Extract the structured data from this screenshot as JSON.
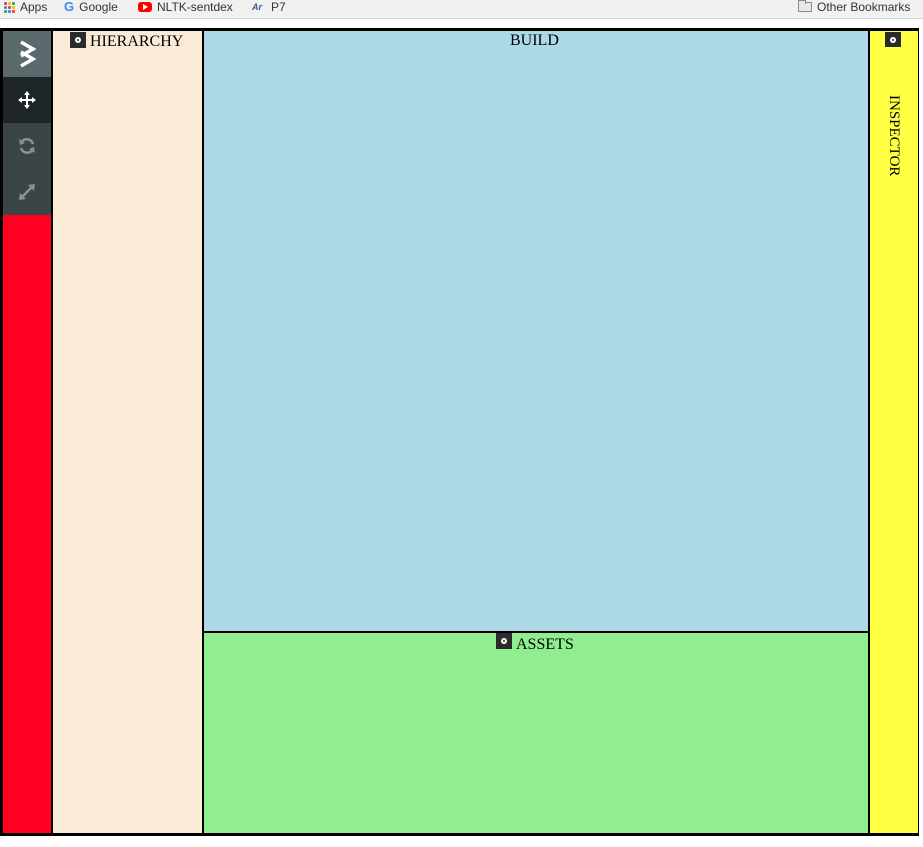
{
  "bookmarks": {
    "items": [
      {
        "label": "Apps",
        "icon": "apps-grid-icon"
      },
      {
        "label": "Google",
        "icon": "google-icon"
      },
      {
        "label": "NLTK-sentdex",
        "icon": "youtube-icon"
      },
      {
        "label": "P7",
        "icon": "p7-icon"
      }
    ],
    "other": {
      "label": "Other Bookmarks",
      "icon": "folder-icon"
    }
  },
  "toolbar": {
    "color": "#ff0021",
    "tools": [
      {
        "name": "logo",
        "icon": "logo-icon"
      },
      {
        "name": "move",
        "icon": "move-icon"
      },
      {
        "name": "rotate",
        "icon": "rotate-icon"
      },
      {
        "name": "scale",
        "icon": "scale-icon"
      }
    ]
  },
  "panels": {
    "hierarchy": {
      "title": "HIERARCHY",
      "color": "#faebd7"
    },
    "build": {
      "title": "BUILD",
      "color": "#add8e6"
    },
    "assets": {
      "title": "ASSETS",
      "color": "#90ee90"
    },
    "inspector": {
      "title": "INSPECTOR",
      "color": "#ffff44"
    }
  }
}
